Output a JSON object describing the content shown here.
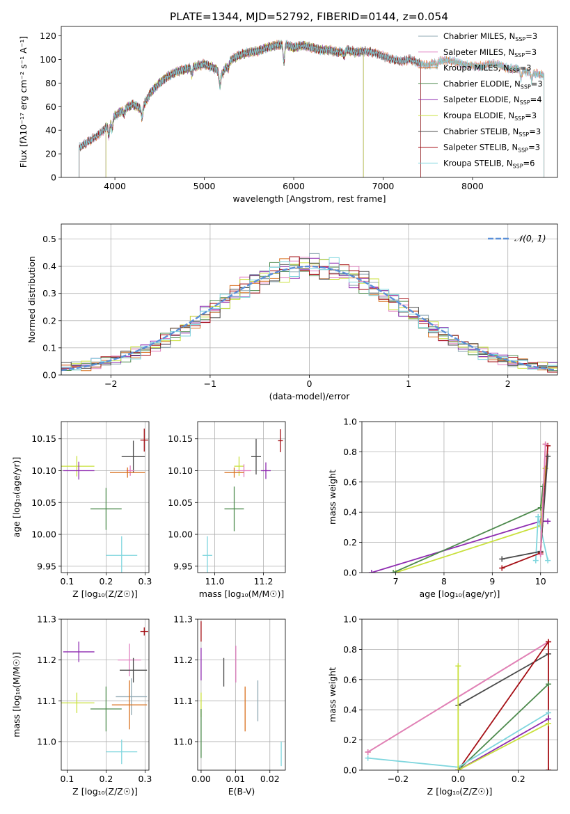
{
  "figure_title": "PLATE=1344, MJD=52792, FIBERID=0144, z=0.054",
  "colors": {
    "Chabrier MILES": "#8fa8b3",
    "Salpeter MILES": "#e07fbf",
    "Kroupa MILES": "#d9701e",
    "Chabrier ELODIE": "#4d8a4d",
    "Salpeter ELODIE": "#8e2bb0",
    "Kroupa ELODIE": "#c9e03c",
    "Chabrier STELIB": "#4a4a4a",
    "Salpeter STELIB": "#a50f15",
    "Kroupa STELIB": "#7fd6de",
    "model_blue": "#5b7fe0",
    "normal_curve": "#5a8fd8"
  },
  "chart_data": [
    {
      "id": "spectrum",
      "type": "line",
      "title": "",
      "xlabel": "wavelength [Angstrom, rest frame]",
      "ylabel": "Flux [fλ10⁻¹⁷ erg cm⁻² s⁻¹ A⁻¹]",
      "xlim": [
        3400,
        8950
      ],
      "ylim": [
        0,
        128
      ],
      "xticks": [
        4000,
        5000,
        6000,
        7000,
        8000
      ],
      "yticks": [
        0,
        20,
        40,
        60,
        80,
        100,
        120
      ],
      "legend_position": "top-right",
      "continuum": [
        [
          3600,
          25
        ],
        [
          3700,
          30
        ],
        [
          3800,
          35
        ],
        [
          3900,
          42
        ],
        [
          4000,
          52
        ],
        [
          4100,
          58
        ],
        [
          4200,
          62
        ],
        [
          4300,
          58
        ],
        [
          4400,
          72
        ],
        [
          4500,
          80
        ],
        [
          4600,
          86
        ],
        [
          4700,
          90
        ],
        [
          4800,
          92
        ],
        [
          4900,
          94
        ],
        [
          5000,
          96
        ],
        [
          5100,
          93
        ],
        [
          5200,
          88
        ],
        [
          5300,
          100
        ],
        [
          5400,
          104
        ],
        [
          5500,
          106
        ],
        [
          5600,
          107
        ],
        [
          5700,
          110
        ],
        [
          5800,
          112
        ],
        [
          5900,
          113
        ],
        [
          6000,
          110
        ],
        [
          6100,
          112
        ],
        [
          6200,
          110
        ],
        [
          6300,
          108
        ],
        [
          6400,
          108
        ],
        [
          6500,
          106
        ],
        [
          6600,
          108
        ],
        [
          6700,
          106
        ],
        [
          6800,
          107
        ],
        [
          6900,
          106
        ],
        [
          7000,
          103
        ],
        [
          7100,
          100
        ],
        [
          7200,
          98
        ],
        [
          7300,
          100
        ],
        [
          7400,
          97
        ],
        [
          7500,
          95
        ],
        [
          7600,
          98
        ],
        [
          7700,
          99
        ],
        [
          7800,
          98
        ],
        [
          7900,
          96
        ],
        [
          8000,
          95
        ],
        [
          8100,
          94
        ],
        [
          8200,
          96
        ],
        [
          8300,
          95
        ],
        [
          8400,
          92
        ],
        [
          8500,
          93
        ],
        [
          8600,
          90
        ],
        [
          8700,
          88
        ],
        [
          8800,
          86
        ]
      ],
      "absorption_lines": [
        [
          3934,
          -10
        ],
        [
          3968,
          -8
        ],
        [
          4102,
          -5
        ],
        [
          4304,
          -8
        ],
        [
          4861,
          -6
        ],
        [
          5175,
          -12
        ],
        [
          5270,
          -4
        ],
        [
          5890,
          -15
        ],
        [
          6563,
          -5
        ],
        [
          7600,
          -4
        ],
        [
          8542,
          -8
        ],
        [
          8662,
          -6
        ]
      ],
      "series": [
        {
          "name": "Chabrier MILES, N_SSP=3",
          "label_main": "Chabrier MILES, N",
          "label_sub": "SSP",
          "label_end": "=3",
          "xmin": 3600,
          "xmax": 8800
        },
        {
          "name": "Salpeter MILES, N_SSP=3",
          "label_main": "Salpeter MILES, N",
          "label_sub": "SSP",
          "label_end": "=3",
          "xmin": 3600,
          "xmax": 8800
        },
        {
          "name": "Kroupa MILES, N_SSP=3",
          "label_main": "Kroupa MILES, N",
          "label_sub": "SSP",
          "label_end": "=3",
          "xmin": 3600,
          "xmax": 8800
        },
        {
          "name": "Chabrier ELODIE, N_SSP=3",
          "label_main": "Chabrier ELODIE, N",
          "label_sub": "SSP",
          "label_end": "=3",
          "xmin": 3900,
          "xmax": 6780
        },
        {
          "name": "Salpeter ELODIE, N_SSP=4",
          "label_main": "Salpeter ELODIE, N",
          "label_sub": "SSP",
          "label_end": "=4",
          "xmin": 3900,
          "xmax": 6780
        },
        {
          "name": "Kroupa ELODIE, N_SSP=3",
          "label_main": "Kroupa ELODIE, N",
          "label_sub": "SSP",
          "label_end": "=3",
          "xmin": 3900,
          "xmax": 6780
        },
        {
          "name": "Chabrier STELIB, N_SSP=3",
          "label_main": "Chabrier STELIB, N",
          "label_sub": "SSP",
          "label_end": "=3",
          "xmin": 3600,
          "xmax": 7420
        },
        {
          "name": "Salpeter STELIB, N_SSP=3",
          "label_main": "Salpeter STELIB, N",
          "label_sub": "SSP",
          "label_end": "=3",
          "xmin": 3600,
          "xmax": 7420
        },
        {
          "name": "Kroupa STELIB, N_SSP=6",
          "label_main": "Kroupa STELIB, N",
          "label_sub": "SSP",
          "label_end": "=6",
          "xmin": 3600,
          "xmax": 8800
        }
      ]
    },
    {
      "id": "residuals",
      "type": "histogram",
      "xlabel": "(data-model)/error",
      "ylabel": "Normed distribution",
      "xlim": [
        -2.5,
        2.5
      ],
      "ylim": [
        0,
        0.555
      ],
      "xticks": [
        -2,
        -1,
        0,
        1,
        2
      ],
      "yticks": [
        0.0,
        0.1,
        0.2,
        0.3,
        0.4,
        0.5
      ],
      "grid": true,
      "legend_position": "top-right",
      "legend_label": "𝒩(0, 1)",
      "bin_width": 0.1,
      "bins_start": -2.5,
      "base_values": [
        0.028,
        0.032,
        0.036,
        0.042,
        0.05,
        0.058,
        0.068,
        0.08,
        0.094,
        0.11,
        0.128,
        0.148,
        0.17,
        0.195,
        0.22,
        0.245,
        0.27,
        0.295,
        0.32,
        0.342,
        0.36,
        0.375,
        0.386,
        0.395,
        0.4,
        0.4,
        0.395,
        0.386,
        0.375,
        0.36,
        0.342,
        0.32,
        0.295,
        0.27,
        0.245,
        0.22,
        0.195,
        0.17,
        0.148,
        0.128,
        0.11,
        0.094,
        0.08,
        0.068,
        0.058,
        0.05,
        0.042,
        0.036,
        0.032,
        0.028
      ]
    },
    {
      "id": "age_vs_Z",
      "type": "scatter",
      "xlabel": "Z [log₁₀(Z/Z☉)]",
      "ylabel": "age  [log₁₀(age/yr)]",
      "xlim": [
        0.085,
        0.31
      ],
      "ylim": [
        9.94,
        10.177
      ],
      "xticks": [
        0.1,
        0.2,
        0.3
      ],
      "yticks": [
        9.95,
        10.0,
        10.05,
        10.1,
        10.15
      ],
      "grid": true,
      "points": [
        {
          "model": "Salpeter STELIB",
          "x": 0.298,
          "y": 10.148,
          "xerr": 0.01,
          "yerr": 0.018
        },
        {
          "model": "Chabrier STELIB",
          "x": 0.27,
          "y": 10.122,
          "xerr": 0.03,
          "yerr": 0.025
        },
        {
          "model": "Kroupa ELODIE",
          "x": 0.125,
          "y": 10.107,
          "xerr": 0.045,
          "yerr": 0.016
        },
        {
          "model": "Salpeter ELODIE",
          "x": 0.13,
          "y": 10.1,
          "xerr": 0.04,
          "yerr": 0.014
        },
        {
          "model": "Salpeter MILES",
          "x": 0.262,
          "y": 10.1,
          "xerr": 0.01,
          "yerr": 0.008
        },
        {
          "model": "Kroupa MILES",
          "x": 0.255,
          "y": 10.097,
          "xerr": 0.045,
          "yerr": 0.008
        },
        {
          "model": "Chabrier ELODIE",
          "x": 0.2,
          "y": 10.04,
          "xerr": 0.04,
          "yerr": 0.033
        },
        {
          "model": "Kroupa STELIB",
          "x": 0.24,
          "y": 9.967,
          "xerr": 0.04,
          "yerr": 0.03
        }
      ]
    },
    {
      "id": "age_vs_mass",
      "type": "scatter",
      "xlabel": "mass [log₁₀(M/M☉)]",
      "ylabel": "",
      "xlim": [
        10.93,
        11.29
      ],
      "ylim": [
        9.94,
        10.177
      ],
      "xticks": [
        11.0,
        11.2
      ],
      "yticks": [
        9.95,
        10.0,
        10.05,
        10.1,
        10.15
      ],
      "grid": true,
      "points": [
        {
          "model": "Salpeter STELIB",
          "x": 11.27,
          "y": 10.147,
          "xerr": 0.01,
          "yerr": 0.018
        },
        {
          "model": "Chabrier STELIB",
          "x": 11.17,
          "y": 10.122,
          "xerr": 0.02,
          "yerr": 0.028
        },
        {
          "model": "Kroupa ELODIE",
          "x": 11.1,
          "y": 10.107,
          "xerr": 0.02,
          "yerr": 0.015
        },
        {
          "model": "Salpeter ELODIE",
          "x": 11.21,
          "y": 10.1,
          "xerr": 0.02,
          "yerr": 0.013
        },
        {
          "model": "Salpeter MILES",
          "x": 11.12,
          "y": 10.1,
          "xerr": 0.03,
          "yerr": 0.01
        },
        {
          "model": "Kroupa MILES",
          "x": 11.08,
          "y": 10.097,
          "xerr": 0.04,
          "yerr": 0.008
        },
        {
          "model": "Chabrier ELODIE",
          "x": 11.08,
          "y": 10.04,
          "xerr": 0.04,
          "yerr": 0.035
        },
        {
          "model": "Kroupa STELIB",
          "x": 10.97,
          "y": 9.967,
          "xerr": 0.02,
          "yerr": 0.03
        }
      ]
    },
    {
      "id": "massweight_vs_age",
      "type": "line",
      "xlabel": "age  [log₁₀(age/yr)]",
      "ylabel": "mass weight",
      "xlim": [
        6.3,
        10.35
      ],
      "ylim": [
        0,
        1.0
      ],
      "xticks": [
        7,
        8,
        9,
        10
      ],
      "yticks": [
        0.0,
        0.2,
        0.4,
        0.6,
        0.8,
        1.0
      ],
      "grid": true,
      "series": [
        {
          "model": "Salpeter ELODIE",
          "points": [
            [
              6.5,
              0.0
            ],
            [
              10.0,
              0.34
            ],
            [
              10.15,
              0.34
            ]
          ]
        },
        {
          "model": "Kroupa ELODIE",
          "points": [
            [
              7.0,
              0.0
            ],
            [
              10.0,
              0.31
            ],
            [
              10.1,
              0.69
            ]
          ]
        },
        {
          "model": "Chabrier ELODIE",
          "points": [
            [
              6.95,
              0.0
            ],
            [
              10.0,
              0.43
            ],
            [
              10.05,
              0.57
            ]
          ]
        },
        {
          "model": "Kroupa STELIB",
          "points": [
            [
              9.9,
              0.08
            ],
            [
              9.95,
              0.37
            ],
            [
              10.15,
              0.08
            ]
          ]
        },
        {
          "model": "Salpeter STELIB",
          "points": [
            [
              9.2,
              0.03
            ],
            [
              10.0,
              0.13
            ],
            [
              10.15,
              0.84
            ]
          ]
        },
        {
          "model": "Chabrier STELIB",
          "points": [
            [
              9.2,
              0.09
            ],
            [
              10.0,
              0.14
            ],
            [
              10.15,
              0.77
            ]
          ]
        },
        {
          "model": "Kroupa MILES",
          "points": [
            [
              10.0,
              0.12
            ],
            [
              10.1,
              0.85
            ]
          ]
        },
        {
          "model": "Salpeter MILES",
          "points": [
            [
              10.0,
              0.12
            ],
            [
              10.1,
              0.85
            ]
          ]
        }
      ]
    },
    {
      "id": "mass_vs_Z",
      "type": "scatter",
      "xlabel": "Z [log₁₀(Z/Z☉)]",
      "ylabel": "mass [log₁₀(M/M☉)]",
      "xlim": [
        0.085,
        0.31
      ],
      "ylim": [
        10.93,
        11.3
      ],
      "xticks": [
        0.1,
        0.2,
        0.3
      ],
      "yticks": [
        11.0,
        11.1,
        11.2,
        11.3
      ],
      "grid": true,
      "points": [
        {
          "model": "Salpeter STELIB",
          "x": 0.298,
          "y": 11.27,
          "xerr": 0.01,
          "yerr": 0.01
        },
        {
          "model": "Salpeter ELODIE",
          "x": 0.13,
          "y": 11.22,
          "xerr": 0.04,
          "yerr": 0.025
        },
        {
          "model": "Salpeter MILES",
          "x": 0.26,
          "y": 11.2,
          "xerr": 0.03,
          "yerr": 0.04
        },
        {
          "model": "Chabrier STELIB",
          "x": 0.27,
          "y": 11.175,
          "xerr": 0.035,
          "yerr": 0.03
        },
        {
          "model": "Chabrier MILES",
          "x": 0.265,
          "y": 11.11,
          "xerr": 0.04,
          "yerr": 0.045
        },
        {
          "model": "Kroupa ELODIE",
          "x": 0.125,
          "y": 11.095,
          "xerr": 0.045,
          "yerr": 0.025
        },
        {
          "model": "Kroupa MILES",
          "x": 0.26,
          "y": 11.09,
          "xerr": 0.045,
          "yerr": 0.06
        },
        {
          "model": "Chabrier ELODIE",
          "x": 0.2,
          "y": 11.08,
          "xerr": 0.04,
          "yerr": 0.055
        },
        {
          "model": "Kroupa STELIB",
          "x": 0.24,
          "y": 10.975,
          "xerr": 0.04,
          "yerr": 0.03
        }
      ]
    },
    {
      "id": "mass_vs_EBV",
      "type": "scatter",
      "xlabel": "E(B-V)",
      "ylabel": "",
      "xlim": [
        -0.001,
        0.0245
      ],
      "ylim": [
        10.93,
        11.3
      ],
      "xticks": [
        0.0,
        0.01,
        0.02
      ],
      "yticks": [
        11.0,
        11.1,
        11.2,
        11.3
      ],
      "grid": true,
      "points": [
        {
          "model": "Salpeter STELIB",
          "x": 0.0,
          "y": 11.27,
          "xerr": 0,
          "yerr": 0.025
        },
        {
          "model": "Salpeter ELODIE",
          "x": 0.0,
          "y": 11.19,
          "xerr": 0,
          "yerr": 0.04
        },
        {
          "model": "Salpeter MILES",
          "x": 0.0101,
          "y": 11.19,
          "xerr": 0,
          "yerr": 0.045
        },
        {
          "model": "Chabrier STELIB",
          "x": 0.0066,
          "y": 11.17,
          "xerr": 0,
          "yerr": 0.035
        },
        {
          "model": "Chabrier MILES",
          "x": 0.0165,
          "y": 11.1,
          "xerr": 0,
          "yerr": 0.05
        },
        {
          "model": "Kroupa ELODIE",
          "x": 0.0,
          "y": 11.09,
          "xerr": 0,
          "yerr": 0.03
        },
        {
          "model": "Kroupa MILES",
          "x": 0.0128,
          "y": 11.08,
          "xerr": 0,
          "yerr": 0.055
        },
        {
          "model": "Chabrier ELODIE",
          "x": 0.0,
          "y": 11.02,
          "xerr": 0,
          "yerr": 0.06
        },
        {
          "model": "Kroupa STELIB",
          "x": 0.0233,
          "y": 10.97,
          "xerr": 0,
          "yerr": 0.03
        }
      ]
    },
    {
      "id": "massweight_vs_Z",
      "type": "line",
      "xlabel": "Z [log₁₀(Z/Z☉)]",
      "ylabel": "mass weight",
      "xlim": [
        -0.32,
        0.33
      ],
      "ylim": [
        0,
        1.0
      ],
      "xticks": [
        -0.2,
        0.0,
        0.2
      ],
      "yticks": [
        0.0,
        0.2,
        0.4,
        0.6,
        0.8,
        1.0
      ],
      "grid": true,
      "series": [
        {
          "model": "Kroupa MILES",
          "points": [
            [
              -0.3,
              0.12
            ],
            [
              0.3,
              0.85
            ]
          ]
        },
        {
          "model": "Salpeter MILES",
          "points": [
            [
              -0.3,
              0.12
            ],
            [
              0.3,
              0.85
            ]
          ]
        },
        {
          "model": "Chabrier STELIB",
          "points": [
            [
              0.0,
              0.43
            ],
            [
              0.3,
              0.77
            ]
          ]
        },
        {
          "model": "Salpeter STELIB",
          "points": [
            [
              0.0,
              0.0
            ],
            [
              0.3,
              0.85
            ],
            [
              0.3,
              0.0
            ]
          ]
        },
        {
          "model": "Chabrier ELODIE",
          "points": [
            [
              0.0,
              0.0
            ],
            [
              0.3,
              0.57
            ]
          ]
        },
        {
          "model": "Kroupa STELIB",
          "points": [
            [
              -0.3,
              0.08
            ],
            [
              0.0,
              0.02
            ],
            [
              0.3,
              0.38
            ]
          ]
        },
        {
          "model": "Salpeter ELODIE",
          "points": [
            [
              0.0,
              0.0
            ],
            [
              0.3,
              0.34
            ]
          ]
        },
        {
          "model": "Kroupa ELODIE",
          "points": [
            [
              0.0,
              0.69
            ],
            [
              0.0,
              0.0
            ],
            [
              0.3,
              0.31
            ]
          ]
        }
      ]
    }
  ]
}
